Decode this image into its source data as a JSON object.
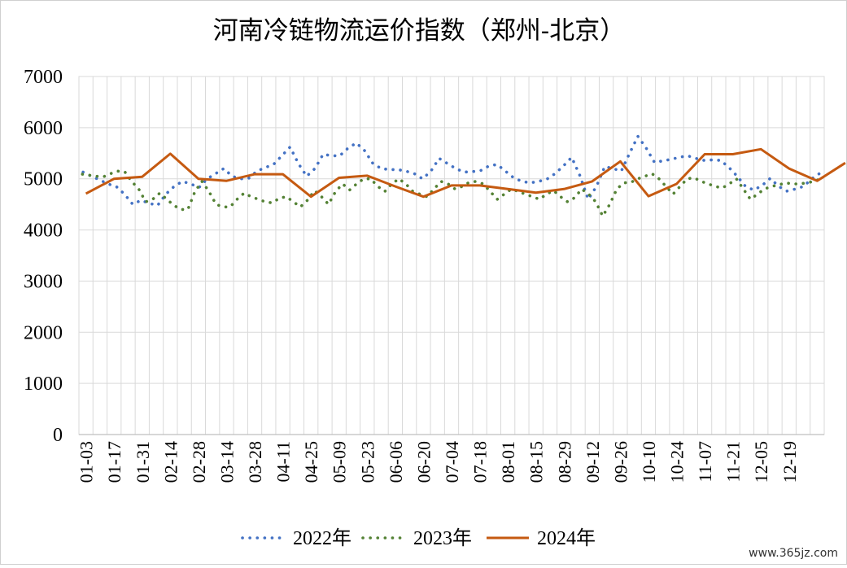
{
  "chart_data": {
    "type": "line",
    "title": "河南冷链物流运价指数（郑州-北京）",
    "xlabel": "",
    "ylabel": "",
    "ylim": [
      0,
      7000
    ],
    "yticks": [
      0,
      1000,
      2000,
      3000,
      4000,
      5000,
      6000,
      7000
    ],
    "x_tick_labels": [
      "01-03",
      "01-17",
      "01-31",
      "02-14",
      "02-28",
      "03-14",
      "03-28",
      "04-11",
      "04-25",
      "05-09",
      "05-23",
      "06-06",
      "06-20",
      "07-04",
      "07-18",
      "08-01",
      "08-15",
      "08-29",
      "09-12",
      "09-26",
      "10-10",
      "10-24",
      "11-07",
      "11-21",
      "12-05",
      "12-19"
    ],
    "grid": true,
    "legend_position": "bottom",
    "series": [
      {
        "name": "2022年",
        "style": "dotted",
        "color": "#4472C4",
        "values": [
          5130,
          5050,
          4980,
          4900,
          4850,
          4700,
          4500,
          4580,
          4520,
          4480,
          4700,
          4850,
          4950,
          4900,
          4830,
          5000,
          5100,
          5200,
          5050,
          5000,
          5010,
          5150,
          5220,
          5280,
          5450,
          5620,
          5300,
          5050,
          5200,
          5480,
          5450,
          5450,
          5600,
          5700,
          5550,
          5300,
          5200,
          5180,
          5180,
          5150,
          5100,
          5000,
          5150,
          5400,
          5300,
          5200,
          5130,
          5140,
          5160,
          5250,
          5280,
          5150,
          5020,
          4950,
          4920,
          4950,
          4990,
          5100,
          5250,
          5420,
          5060,
          4600,
          4850,
          5240,
          5200,
          5150,
          5500,
          5830,
          5600,
          5320,
          5350,
          5380,
          5420,
          5450,
          5400,
          5360,
          5370,
          5360,
          5220,
          5050,
          4850,
          4780,
          4870,
          5010,
          4850,
          4760,
          4800,
          4850,
          5000,
          5110
        ]
      },
      {
        "name": "2023年",
        "style": "dotted",
        "color": "#548235",
        "values": [
          5090,
          5070,
          5050,
          5040,
          5100,
          5150,
          5140,
          4950,
          4800,
          4550,
          4600,
          4720,
          4600,
          4480,
          4400,
          4400,
          4750,
          4950,
          4750,
          4500,
          4450,
          4450,
          4600,
          4720,
          4650,
          4600,
          4550,
          4530,
          4620,
          4650,
          4550,
          4450,
          4580,
          4770,
          4650,
          4500,
          4750,
          4900,
          4780,
          4900,
          5000,
          5000,
          4850,
          4750,
          4900,
          5000,
          4900,
          4750,
          4700,
          4650,
          4800,
          4950,
          4900,
          4800,
          4850,
          4930,
          4950,
          4900,
          4750,
          4600,
          4700,
          4800,
          4750,
          4700,
          4650,
          4600,
          4700,
          4770,
          4650,
          4550,
          4630,
          4800,
          4700,
          4550,
          4270,
          4500,
          4800,
          4920,
          4930,
          5000,
          5050,
          5100,
          5000,
          4850,
          4700,
          4850,
          5000,
          5020,
          4950,
          4900,
          4850,
          4820,
          4900,
          5000,
          4800,
          4600,
          4700,
          4800,
          4850,
          4880,
          4920,
          4900,
          4900,
          4920,
          4950,
          5000
        ]
      },
      {
        "name": "2024年",
        "color": "#C55A11",
        "style": "solid",
        "values": [
          4710,
          5000,
          5040,
          5490,
          5000,
          4960,
          5090,
          5090,
          4650,
          5020,
          5060,
          4850,
          4650,
          4870,
          4870,
          4800,
          4730,
          4800,
          4950,
          5340,
          4660,
          4900,
          5480,
          5480,
          5580,
          5200,
          4960,
          5310
        ]
      }
    ]
  },
  "watermark": "www.365jz.com"
}
